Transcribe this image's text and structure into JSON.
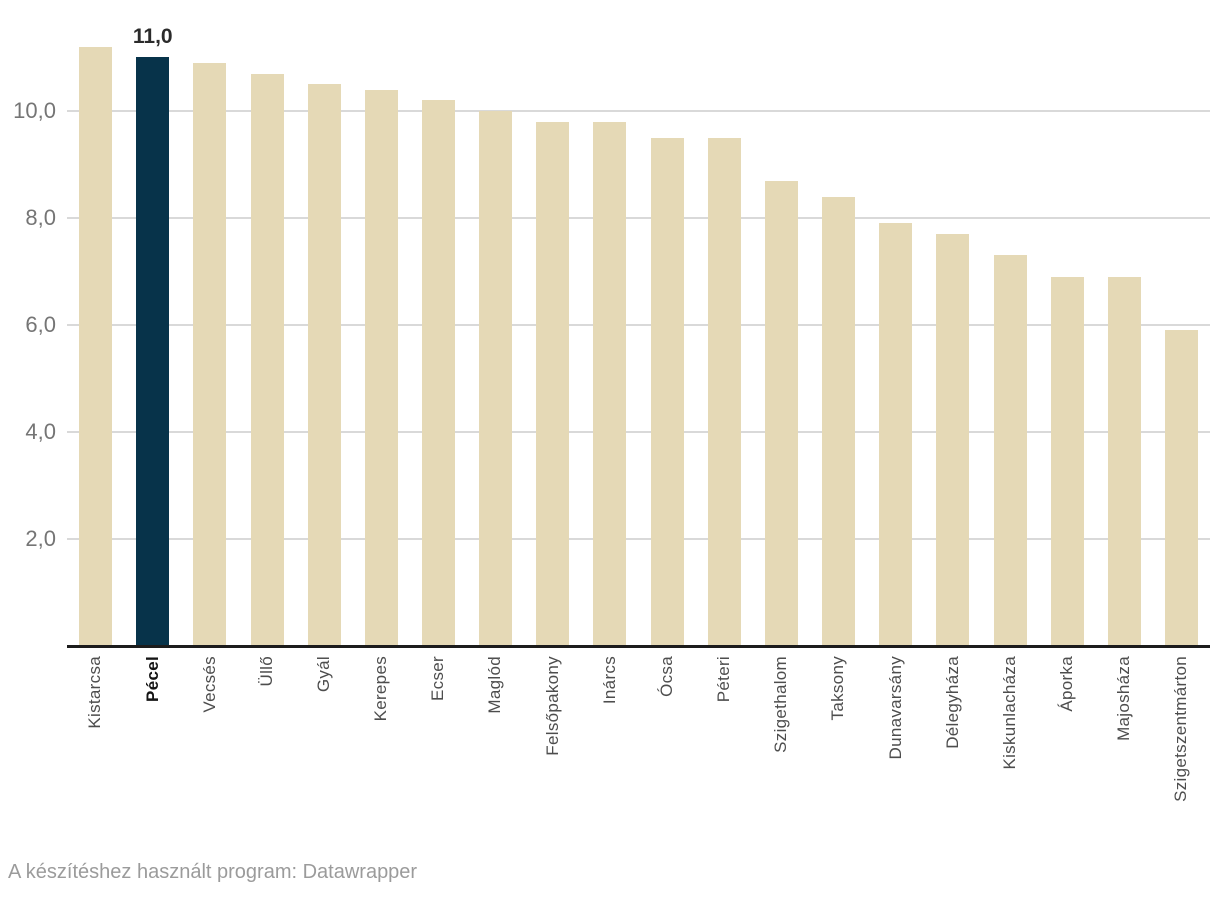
{
  "chart_data": {
    "type": "bar",
    "title": "",
    "xlabel": "",
    "ylabel": "",
    "categories": [
      "Kistarcsa",
      "Pécel",
      "Vecsés",
      "Üllő",
      "Gyál",
      "Kerepes",
      "Ecser",
      "Maglód",
      "Felsőpakony",
      "Inárcs",
      "Ócsa",
      "Péteri",
      "Szigethalom",
      "Taksony",
      "Dunavarsány",
      "Délegyháza",
      "Kiskunlacháza",
      "Áporka",
      "Majosháza",
      "Szigetszentmárton"
    ],
    "values": [
      11.2,
      11.0,
      10.9,
      10.7,
      10.5,
      10.4,
      10.2,
      10.0,
      9.8,
      9.8,
      9.5,
      9.5,
      8.7,
      8.4,
      7.9,
      7.7,
      7.3,
      6.9,
      6.9,
      5.9
    ],
    "highlight": {
      "index": 1,
      "category": "Pécel",
      "value_label": "11,0"
    },
    "ylim": [
      0,
      12.1
    ],
    "yticks": [
      2,
      4,
      6,
      8,
      10
    ],
    "ytick_labels": [
      "2,0",
      "4,0",
      "6,0",
      "8,0",
      "10,0"
    ],
    "grid": "horizontal, behind bars",
    "legend": "none",
    "decimal_separator": ","
  },
  "colors": {
    "background": "#ffffff",
    "bar": "#e5d9b6",
    "highlight_bar": "#07334a",
    "grid_line": "#d9d9d9",
    "axis_line": "#1c1c1c",
    "y_tick_text": "#757575",
    "x_tick_text": "#4d4d4d",
    "x_tick_highlight_text": "#141414",
    "value_label_text": "#2b2b2b",
    "footer_text": "#9b9b9b"
  },
  "footer": {
    "text": "A készítéshez használt program: Datawrapper"
  }
}
